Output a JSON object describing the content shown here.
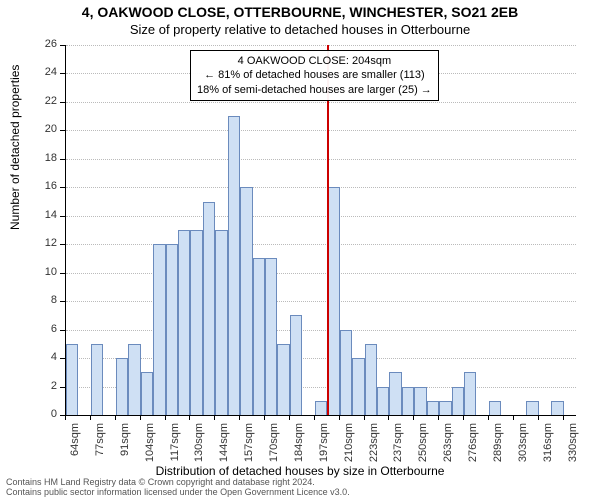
{
  "chart": {
    "type": "histogram",
    "title_primary": "4, OAKWOOD CLOSE, OTTERBOURNE, WINCHESTER, SO21 2EB",
    "title_secondary": "Size of property relative to detached houses in Otterbourne",
    "x_label": "Distribution of detached houses by size in Otterbourne",
    "y_label": "Number of detached properties",
    "background_color": "#ffffff",
    "grid_color": "#bbbbbb",
    "axis_color": "#000000",
    "bar_fill": "#cfe0f4",
    "bar_border": "#6b8bbd",
    "marker_line_color": "#cc0000",
    "y_min": 0,
    "y_max": 26,
    "y_tick_step": 2,
    "x_ticks": [
      "64sqm",
      "77sqm",
      "91sqm",
      "104sqm",
      "117sqm",
      "130sqm",
      "144sqm",
      "157sqm",
      "170sqm",
      "184sqm",
      "197sqm",
      "210sqm",
      "223sqm",
      "237sqm",
      "250sqm",
      "263sqm",
      "276sqm",
      "289sqm",
      "303sqm",
      "316sqm",
      "330sqm"
    ],
    "x_tick_every": 2,
    "bar_values": [
      5,
      0,
      5,
      0,
      4,
      5,
      3,
      12,
      12,
      13,
      13,
      15,
      13,
      21,
      16,
      11,
      11,
      5,
      7,
      0,
      1,
      16,
      6,
      4,
      5,
      2,
      3,
      2,
      2,
      1,
      1,
      2,
      3,
      0,
      1,
      0,
      0,
      1,
      0,
      1,
      0
    ],
    "marker_bar_index_after": 21,
    "callout": {
      "line1": "4 OAKWOOD CLOSE: 204sqm",
      "line2": "← 81% of detached houses are smaller (113)",
      "line3": "18% of semi-detached houses are larger (25) →"
    },
    "title_fontsize": 14,
    "subtitle_fontsize": 13,
    "label_fontsize": 12,
    "tick_fontsize": 11,
    "callout_fontsize": 11
  },
  "footer": {
    "line1": "Contains HM Land Registry data © Crown copyright and database right 2024.",
    "line2": "Contains public sector information licensed under the Open Government Licence v3.0."
  }
}
